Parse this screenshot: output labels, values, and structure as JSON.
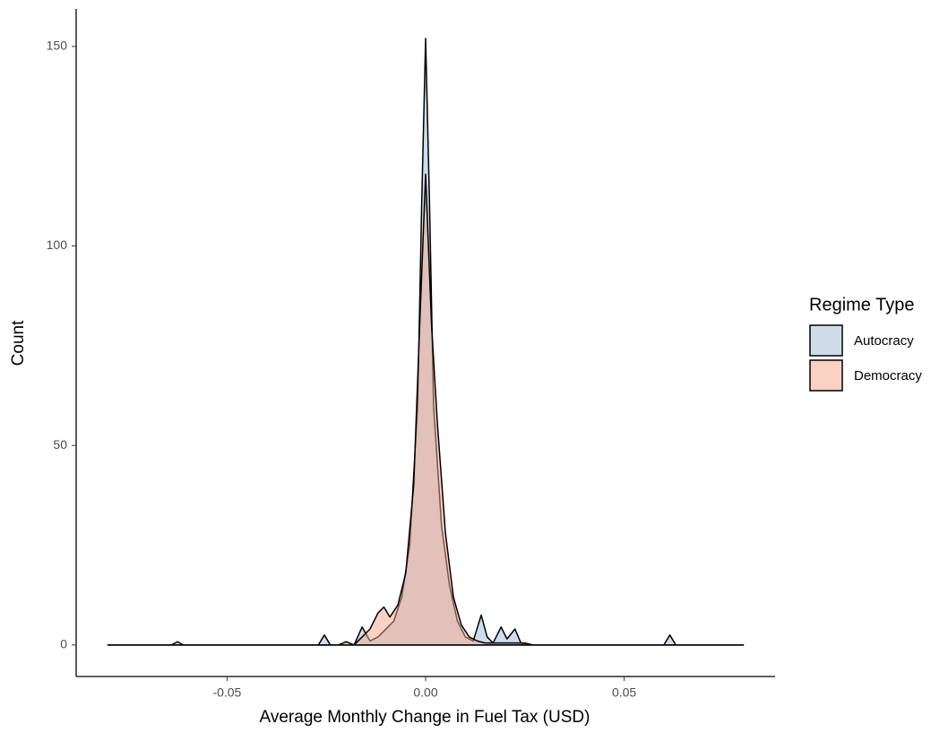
{
  "chart_data": {
    "type": "area",
    "x_label": "Average Monthly Change in Fuel Tax (USD)",
    "y_label": "Count",
    "legend_title": "Regime Type",
    "legend_position": "right",
    "xlim": [
      -0.088,
      0.088
    ],
    "ylim": [
      -7.9,
      159.4
    ],
    "xticks": [
      {
        "value": -0.05,
        "label": "-0.05"
      },
      {
        "value": 0,
        "label": "0.00"
      },
      {
        "value": 0.05,
        "label": "0.05"
      }
    ],
    "yticks": [
      0,
      50,
      100,
      150
    ],
    "grid": false,
    "series": [
      {
        "name": "Autocracy",
        "color": "#9fbcd8",
        "x": [
          -0.08,
          -0.027,
          -0.0255,
          -0.024,
          -0.018,
          -0.016,
          -0.014,
          -0.012,
          -0.008,
          -0.006,
          -0.004,
          -0.002,
          -0.001,
          0,
          0.001,
          0.002,
          0.003,
          0.004,
          0.006,
          0.008,
          0.01,
          0.012,
          0.014,
          0.0155,
          0.017,
          0.019,
          0.0205,
          0.0225,
          0.024,
          0.026,
          0.06,
          0.0615,
          0.063,
          0.08
        ],
        "values": [
          0,
          0,
          2.5,
          0,
          0,
          4.5,
          1,
          2,
          6,
          12,
          25,
          60,
          110,
          152,
          110,
          60,
          45,
          30,
          15,
          6,
          2,
          1,
          7.5,
          2,
          0.5,
          4.5,
          1.5,
          4,
          0.5,
          0,
          0,
          2.5,
          0,
          0
        ]
      },
      {
        "name": "Democracy",
        "color": "#f4a58a",
        "x": [
          -0.08,
          -0.064,
          -0.0625,
          -0.061,
          -0.022,
          -0.02,
          -0.018,
          -0.016,
          -0.014,
          -0.012,
          -0.0105,
          -0.009,
          -0.007,
          -0.005,
          -0.003,
          -0.0015,
          0,
          0.0015,
          0.003,
          0.005,
          0.007,
          0.009,
          0.011,
          0.013,
          0.015,
          0.02,
          0.025,
          0.027,
          0.08
        ],
        "values": [
          0,
          0,
          0.8,
          0,
          0,
          0.8,
          0,
          2,
          4,
          8,
          9.5,
          7,
          10,
          18,
          40,
          80,
          118,
          80,
          55,
          28,
          12,
          5,
          2,
          1,
          0.5,
          0.5,
          0.5,
          0,
          0
        ]
      }
    ]
  }
}
